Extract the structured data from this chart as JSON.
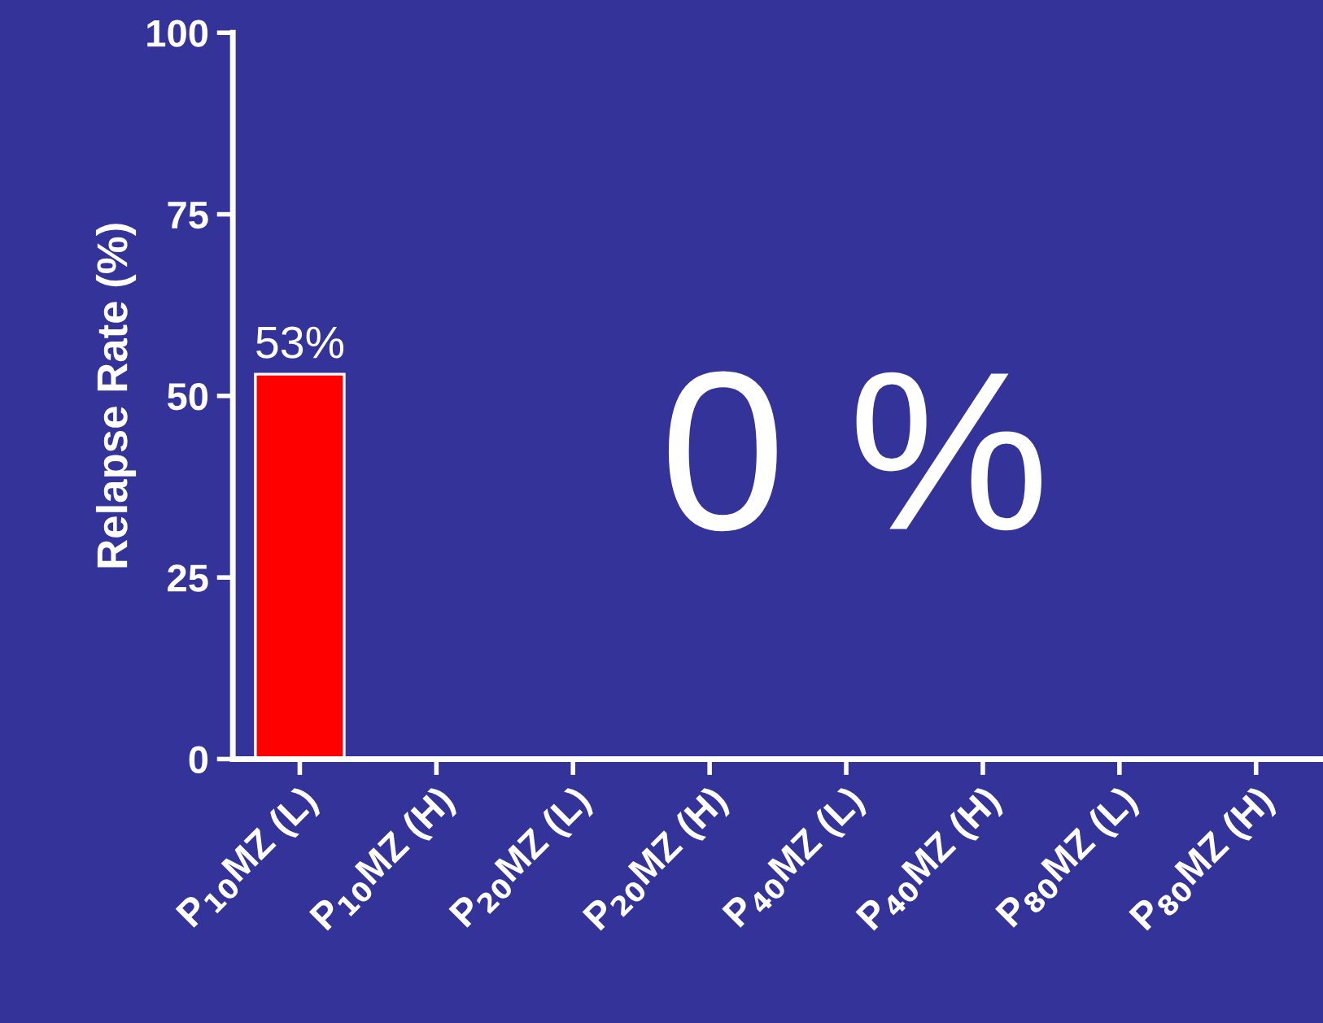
{
  "chart_data": {
    "type": "bar",
    "ylabel": "Relapse Rate (%)",
    "categories": [
      "P$_{10}$MZ (L)",
      "P$_{10}$MZ (H)",
      "P$_{20}$MZ (L)",
      "P$_{20}$MZ (H)",
      "P$_{40}$MZ (L)",
      "P$_{40}$MZ (H)",
      "P$_{80}$MZ (L)",
      "P$_{80}$MZ (H)"
    ],
    "values": [
      53,
      0,
      0,
      0,
      0,
      0,
      0,
      0
    ],
    "value_labels": [
      "53%",
      null,
      null,
      null,
      null,
      null,
      null,
      null
    ],
    "color": "#ff0000",
    "ylim": [
      0,
      100
    ],
    "yticks": [
      0,
      25,
      50,
      75,
      100
    ],
    "annotations": [
      "0 %"
    ],
    "grid": false,
    "legend": false
  }
}
